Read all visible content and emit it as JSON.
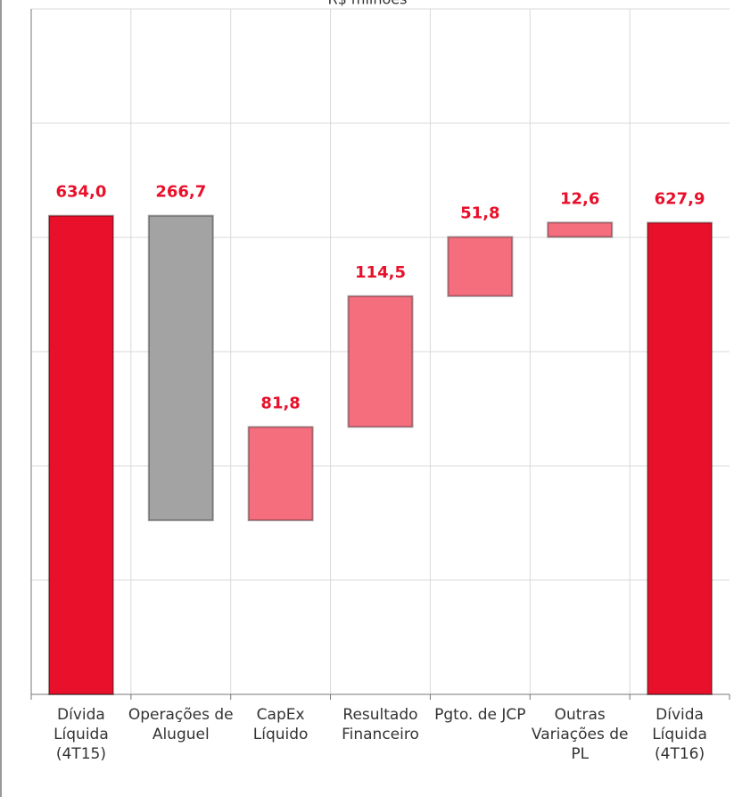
{
  "chart_data": {
    "type": "waterfall",
    "title": "R$ milhões",
    "categories": [
      "Dívida Líquida (4T15)",
      "Operações de Aluguel",
      "CapEx Líquido",
      "Resultado Financeiro",
      "Pgto. de JCP",
      "Outras Variações de PL",
      "Dívida Líquida (4T16)"
    ],
    "values": [
      634.0,
      266.7,
      81.8,
      114.5,
      51.8,
      12.6,
      627.9
    ],
    "value_labels": [
      "634,0",
      "266,7",
      "81,8",
      "114,5",
      "51,8",
      "12,6",
      "627,9"
    ],
    "measures": [
      "total",
      "decrease",
      "increase",
      "increase",
      "increase",
      "increase",
      "total"
    ],
    "colors": {
      "total": "#e8102a",
      "decrease": "#a3a3a3",
      "increase": "#f46e7e"
    },
    "label_color": "#e8102a",
    "ylim": [
      215,
      815
    ],
    "yticks": [
      215,
      315,
      415,
      515,
      615,
      715,
      815
    ],
    "grid": true
  }
}
